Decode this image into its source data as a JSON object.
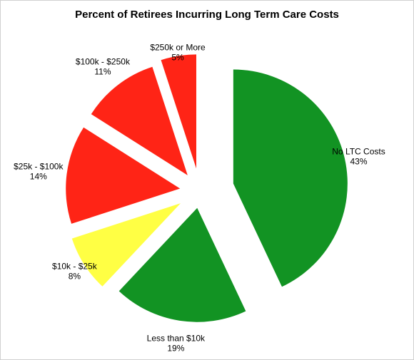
{
  "chart_data": {
    "type": "pie",
    "title": "Percent of Retirees Incurring Long Term Care Costs",
    "slices": [
      {
        "label": "No LTC Costs",
        "pct_label": "43%",
        "value": 43,
        "color": "#129323"
      },
      {
        "label": "Less than $10k",
        "pct_label": "19%",
        "value": 19,
        "color": "#129323"
      },
      {
        "label": "$10k - $25k",
        "pct_label": "8%",
        "value": 8,
        "color": "#ffff44"
      },
      {
        "label": "$25k - $100k",
        "pct_label": "14%",
        "value": 14,
        "color": "#ff2416"
      },
      {
        "label": "$100k - $250k",
        "pct_label": "11%",
        "value": 11,
        "color": "#ff2416"
      },
      {
        "label": "$250k or More",
        "pct_label": "5%",
        "value": 5,
        "color": "#ff2416"
      }
    ],
    "start_angle_deg": 0,
    "direction": "clockwise",
    "exploded": true,
    "legend": "none"
  }
}
